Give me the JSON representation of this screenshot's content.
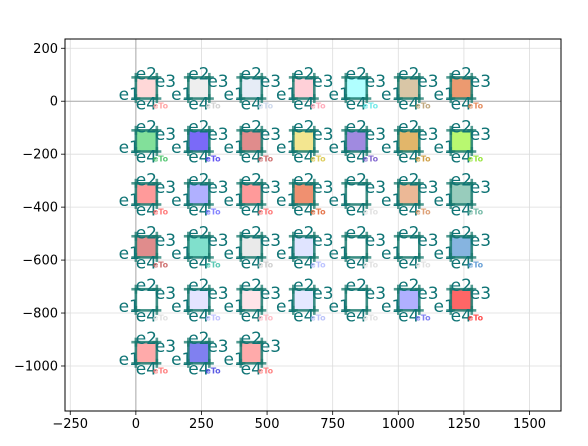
{
  "chart_data": {
    "type": "scatter",
    "title": "",
    "xlabel": "",
    "ylabel": "",
    "xlim": [
      -270,
      1620
    ],
    "ylim": [
      -1170,
      235
    ],
    "x_ticks": [
      -250,
      0,
      250,
      500,
      750,
      1000,
      1250,
      1500
    ],
    "x_tick_labels": [
      "−250",
      "0",
      "250",
      "500",
      "750",
      "1000",
      "1250",
      "1500"
    ],
    "y_ticks": [
      200,
      0,
      -200,
      -400,
      -600,
      -800,
      -1000
    ],
    "y_tick_labels": [
      "200",
      "0",
      "−200",
      "−400",
      "−600",
      "−800",
      "−1000"
    ],
    "grid": true,
    "legend": "none",
    "reference_lines": {
      "x": 0,
      "y": 0
    },
    "edge_labels": [
      "e1",
      "e2",
      "e3",
      "e4"
    ],
    "frame_color": "#1a7a6e",
    "label_color": "#0f7475",
    "cells": [
      {
        "x": 40,
        "y": 50,
        "fill": "#ffd8d8",
        "label": "eTo",
        "label_color": "#ff9999"
      },
      {
        "x": 240,
        "y": 50,
        "fill": "#eeeeee",
        "label": "eTo",
        "label_color": "#cccccc"
      },
      {
        "x": 440,
        "y": 50,
        "fill": "#e6ecf6",
        "label": "eTo",
        "label_color": "#c7d3ea"
      },
      {
        "x": 640,
        "y": 50,
        "fill": "#ffd0d8",
        "label": "eTo",
        "label_color": "#ff9db0"
      },
      {
        "x": 840,
        "y": 50,
        "fill": "#b0ffff",
        "label": "eTo",
        "label_color": "#5ee6e6"
      },
      {
        "x": 1040,
        "y": 50,
        "fill": "#d9c6a6",
        "label": "eTo",
        "label_color": "#b69a6a"
      },
      {
        "x": 1240,
        "y": 50,
        "fill": "#ec9a70",
        "label": "eTo",
        "label_color": "#e07a45"
      },
      {
        "x": 40,
        "y": -150,
        "fill": "#82e09a",
        "label": "eTo",
        "label_color": "#40c060"
      },
      {
        "x": 240,
        "y": -150,
        "fill": "#7a6af8",
        "label": "eTo",
        "label_color": "#4a3af0"
      },
      {
        "x": 440,
        "y": -150,
        "fill": "#e08c8c",
        "label": "eTo",
        "label_color": "#c85a5a"
      },
      {
        "x": 640,
        "y": -150,
        "fill": "#f3e690",
        "label": "eTo",
        "label_color": "#d8c440"
      },
      {
        "x": 840,
        "y": -150,
        "fill": "#a08ae0",
        "label": "eTo",
        "label_color": "#7050c8"
      },
      {
        "x": 1040,
        "y": -150,
        "fill": "#e2b66a",
        "label": "eTo",
        "label_color": "#c8902a"
      },
      {
        "x": 1240,
        "y": -150,
        "fill": "#b8f870",
        "label": "eTo",
        "label_color": "#88e020"
      },
      {
        "x": 40,
        "y": -350,
        "fill": "#ff9a9a",
        "label": "eTo",
        "label_color": "#ff6666"
      },
      {
        "x": 240,
        "y": -350,
        "fill": "#b0b0ff",
        "label": "eTo",
        "label_color": "#7070ff"
      },
      {
        "x": 440,
        "y": -350,
        "fill": "#ff9a9a",
        "label": "eTo",
        "label_color": "#ff6666"
      },
      {
        "x": 640,
        "y": -350,
        "fill": "#f09070",
        "label": "eTo",
        "label_color": "#e06030"
      },
      {
        "x": 840,
        "y": -350,
        "fill": "#ffffff",
        "label": "eTo",
        "label_color": "#dddddd"
      },
      {
        "x": 1040,
        "y": -350,
        "fill": "#ecb896",
        "label": "eTo",
        "label_color": "#d89060"
      },
      {
        "x": 1240,
        "y": -350,
        "fill": "#98ccbc",
        "label": "eTo",
        "label_color": "#60b09a"
      },
      {
        "x": 40,
        "y": -550,
        "fill": "#e08c8c",
        "label": "eTo",
        "label_color": "#c85a5a"
      },
      {
        "x": 240,
        "y": -550,
        "fill": "#80e0cc",
        "label": "eTo",
        "label_color": "#40c0a8"
      },
      {
        "x": 440,
        "y": -550,
        "fill": "#eaeaea",
        "label": "eTo",
        "label_color": "#c8c8c8"
      },
      {
        "x": 640,
        "y": -550,
        "fill": "#e0e4ff",
        "label": "eTo",
        "label_color": "#b0b8ff"
      },
      {
        "x": 840,
        "y": -550,
        "fill": "#ffffff",
        "label": "eTo",
        "label_color": "#dddddd"
      },
      {
        "x": 1040,
        "y": -550,
        "fill": "#ffffff",
        "label": "eTo",
        "label_color": "#dddddd"
      },
      {
        "x": 1240,
        "y": -550,
        "fill": "#86b4e0",
        "label": "eTo",
        "label_color": "#5090d0"
      },
      {
        "x": 40,
        "y": -750,
        "fill": "#ffffff",
        "label": "eTo",
        "label_color": "#dddddd"
      },
      {
        "x": 240,
        "y": -750,
        "fill": "#e4e4ff",
        "label": "eTo",
        "label_color": "#b8b8ff"
      },
      {
        "x": 440,
        "y": -750,
        "fill": "#ffe4e8",
        "label": "eTo",
        "label_color": "#ffb0bc"
      },
      {
        "x": 640,
        "y": -750,
        "fill": "#e4e8ff",
        "label": "eTo",
        "label_color": "#b0b8f8"
      },
      {
        "x": 840,
        "y": -750,
        "fill": "#ffffff",
        "label": "eTo",
        "label_color": "#dddddd"
      },
      {
        "x": 1040,
        "y": -750,
        "fill": "#b0b0ff",
        "label": "eTo",
        "label_color": "#6a6af0"
      },
      {
        "x": 1240,
        "y": -750,
        "fill": "#ff6666",
        "label": "eTo",
        "label_color": "#ff3030"
      },
      {
        "x": 40,
        "y": -950,
        "fill": "#ffaaaa",
        "label": "eTo",
        "label_color": "#ff7070"
      },
      {
        "x": 240,
        "y": -950,
        "fill": "#8080f0",
        "label": "eTo",
        "label_color": "#4040e0"
      },
      {
        "x": 440,
        "y": -950,
        "fill": "#ffaaaa",
        "label": "eTo",
        "label_color": "#ff7070"
      }
    ]
  }
}
